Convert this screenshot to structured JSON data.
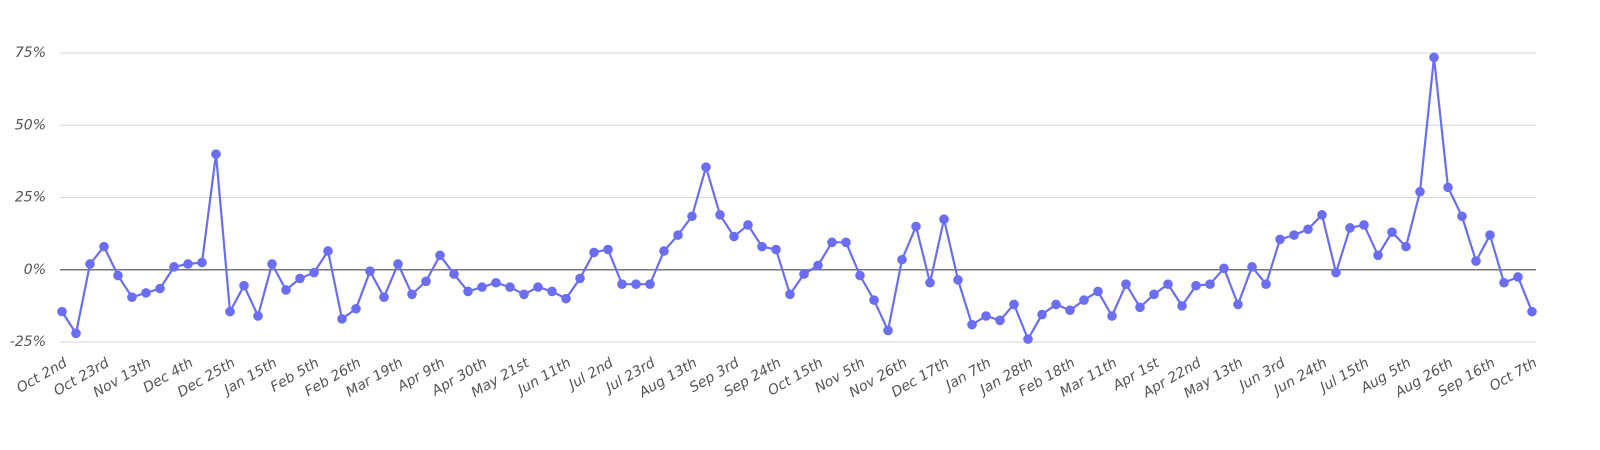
{
  "chart_data": {
    "type": "line",
    "color": "#6b6ef2",
    "grid": true,
    "categories": [
      "Oct 2nd",
      null,
      null,
      "Oct 23rd",
      null,
      null,
      "Nov 13th",
      null,
      null,
      "Dec 4th",
      null,
      null,
      "Dec 25th",
      null,
      null,
      "Jan 15th",
      null,
      null,
      "Feb 5th",
      null,
      null,
      "Feb 26th",
      null,
      null,
      "Mar 19th",
      null,
      null,
      "Apr 9th",
      null,
      null,
      "Apr 30th",
      null,
      null,
      "May 21st",
      null,
      null,
      "Jun 11th",
      null,
      null,
      "Jul 2nd",
      null,
      null,
      "Jul 23rd",
      null,
      null,
      "Aug 13th",
      null,
      null,
      "Sep 3rd",
      null,
      null,
      "Sep 24th",
      null,
      null,
      "Oct 15th",
      null,
      null,
      "Nov 5th",
      null,
      null,
      "Nov 26th",
      null,
      null,
      "Dec 17th",
      null,
      null,
      "Jan 7th",
      null,
      null,
      "Jan 28th",
      null,
      null,
      "Feb 18th",
      null,
      null,
      "Mar 11th",
      null,
      null,
      "Apr 1st",
      null,
      null,
      "Apr 22nd",
      null,
      null,
      "May 13th",
      null,
      null,
      "Jun 3rd",
      null,
      null,
      "Jun 24th",
      null,
      null,
      "Jul 15th",
      null,
      null,
      "Aug 5th",
      null,
      null,
      "Aug 26th",
      null,
      null,
      "Sep 16th",
      null,
      null,
      "Oct 7th"
    ],
    "values": [
      -14.5,
      -22,
      2,
      8,
      -2,
      -9.5,
      -8,
      -6.5,
      1,
      2,
      2.5,
      40,
      -14.5,
      -5.5,
      -16,
      2,
      -7,
      -3,
      -1,
      6.5,
      -17,
      -13.5,
      -0.5,
      -9.5,
      2,
      -8.5,
      -4,
      5,
      -1.5,
      -7.5,
      -6,
      -4.5,
      -6,
      -8.5,
      -6,
      -7.5,
      -10,
      -3,
      6,
      7,
      -5,
      -5,
      -5,
      6.5,
      12,
      18.5,
      35.5,
      19,
      11.5,
      15.5,
      8,
      7,
      -8.5,
      -1.5,
      1.5,
      9.5,
      9.5,
      -2,
      -10.5,
      -21,
      3.5,
      15,
      -4.5,
      17.5,
      -3.5,
      -19,
      -16,
      -17.5,
      -12,
      -24,
      -15.5,
      -12,
      -14,
      -10.5,
      -7.5,
      -16,
      -5,
      -13,
      -8.5,
      -5,
      -12.5,
      -5.5,
      -5,
      0.5,
      -12,
      1,
      -5,
      10.5,
      12,
      14,
      19,
      -1,
      14.5,
      15.5,
      5,
      13,
      8,
      27,
      73.5,
      28.5,
      18.5,
      3,
      12,
      -4.5,
      -2.5,
      -14.5
    ],
    "ylim": [
      -25,
      75
    ],
    "yticks": [
      {
        "value": -25,
        "label": "-25%"
      },
      {
        "value": 0,
        "label": "0%"
      },
      {
        "value": 25,
        "label": "25%"
      },
      {
        "value": 50,
        "label": "50%"
      },
      {
        "value": 75,
        "label": "75%"
      }
    ]
  }
}
